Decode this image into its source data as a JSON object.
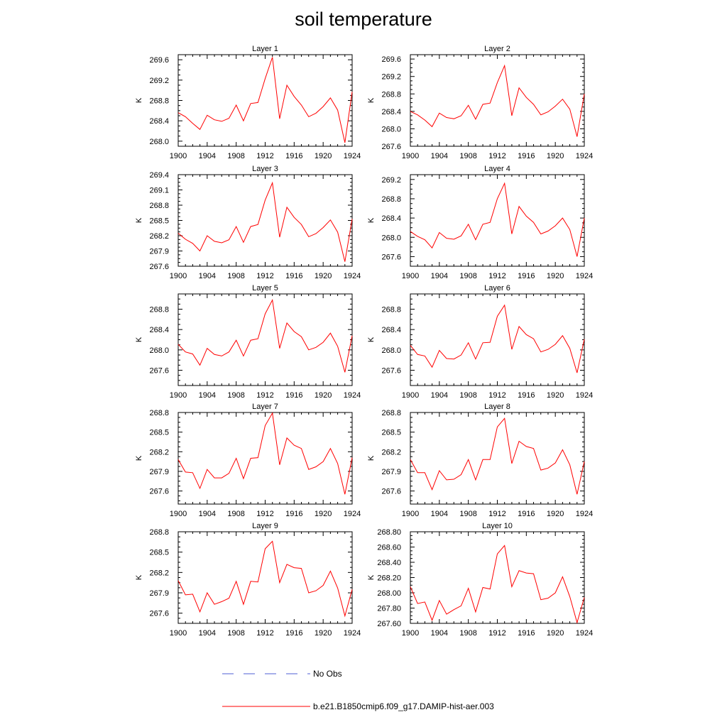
{
  "figure": {
    "title": "soil temperature"
  },
  "legend": {
    "entries": [
      {
        "label": "No Obs",
        "color": "#4f5fd6",
        "style": "dashed"
      },
      {
        "label": "b.e21.B1850cmip6.f09_g17.DAMIP-hist-aer.003",
        "color": "#ff0000",
        "style": "solid"
      }
    ]
  },
  "chart_data": [
    {
      "type": "line",
      "title": "Layer 1",
      "ylabel": "K",
      "xlim": [
        1900,
        1924
      ],
      "ylim": [
        267.9,
        269.7
      ],
      "x_ticks": [
        "1900",
        "1904",
        "1908",
        "1912",
        "1916",
        "1920",
        "1924"
      ],
      "y_ticks": [
        "268.0",
        "268.4",
        "268.8",
        "269.2",
        "269.6"
      ],
      "x": [
        1900,
        1901,
        1902,
        1903,
        1904,
        1905,
        1906,
        1907,
        1908,
        1909,
        1910,
        1911,
        1912,
        1913,
        1914,
        1915,
        1916,
        1917,
        1918,
        1919,
        1920,
        1921,
        1922,
        1923,
        1924
      ],
      "series": [
        {
          "name": "b.e21.B1850cmip6.f09_g17.DAMIP-hist-aer.003",
          "color": "#ff0000",
          "values": [
            268.56,
            268.48,
            268.35,
            268.23,
            268.51,
            268.42,
            268.39,
            268.45,
            268.71,
            268.4,
            268.74,
            268.76,
            269.23,
            269.65,
            268.44,
            269.1,
            268.88,
            268.71,
            268.48,
            268.55,
            268.68,
            268.85,
            268.61,
            267.97,
            268.97
          ]
        }
      ]
    },
    {
      "type": "line",
      "title": "Layer 2",
      "ylabel": "K",
      "xlim": [
        1900,
        1924
      ],
      "ylim": [
        267.6,
        269.7
      ],
      "x_ticks": [
        "1900",
        "1904",
        "1908",
        "1912",
        "1916",
        "1920",
        "1924"
      ],
      "y_ticks": [
        "267.6",
        "268.0",
        "268.4",
        "268.8",
        "269.2",
        "269.6"
      ],
      "x": [
        1900,
        1901,
        1902,
        1903,
        1904,
        1905,
        1906,
        1907,
        1908,
        1909,
        1910,
        1911,
        1912,
        1913,
        1914,
        1915,
        1916,
        1917,
        1918,
        1919,
        1920,
        1921,
        1922,
        1923,
        1924
      ],
      "series": [
        {
          "name": "b.e21.B1850cmip6.f09_g17.DAMIP-hist-aer.003",
          "color": "#ff0000",
          "values": [
            268.4,
            268.32,
            268.2,
            268.05,
            268.36,
            268.26,
            268.23,
            268.3,
            268.54,
            268.22,
            268.56,
            268.59,
            269.06,
            269.45,
            268.3,
            268.94,
            268.72,
            268.56,
            268.32,
            268.39,
            268.52,
            268.68,
            268.45,
            267.82,
            268.8
          ]
        }
      ]
    },
    {
      "type": "line",
      "title": "Layer 3",
      "ylabel": "K",
      "xlim": [
        1900,
        1924
      ],
      "ylim": [
        267.6,
        269.4
      ],
      "x_ticks": [
        "1900",
        "1904",
        "1908",
        "1912",
        "1916",
        "1920",
        "1924"
      ],
      "y_ticks": [
        "267.6",
        "267.9",
        "268.2",
        "268.5",
        "268.8",
        "269.1",
        "269.4"
      ],
      "x": [
        1900,
        1901,
        1902,
        1903,
        1904,
        1905,
        1906,
        1907,
        1908,
        1909,
        1910,
        1911,
        1912,
        1913,
        1914,
        1915,
        1916,
        1917,
        1918,
        1919,
        1920,
        1921,
        1922,
        1923,
        1924
      ],
      "series": [
        {
          "name": "b.e21.B1850cmip6.f09_g17.DAMIP-hist-aer.003",
          "color": "#ff0000",
          "values": [
            268.25,
            268.13,
            268.05,
            267.9,
            268.2,
            268.09,
            268.06,
            268.12,
            268.38,
            268.07,
            268.38,
            268.42,
            268.9,
            269.24,
            268.17,
            268.76,
            268.56,
            268.42,
            268.18,
            268.24,
            268.36,
            268.51,
            268.27,
            267.69,
            268.53
          ]
        }
      ]
    },
    {
      "type": "line",
      "title": "Layer 4",
      "ylabel": "K",
      "xlim": [
        1900,
        1924
      ],
      "ylim": [
        267.4,
        269.3
      ],
      "x_ticks": [
        "1900",
        "1904",
        "1908",
        "1912",
        "1916",
        "1920",
        "1924"
      ],
      "y_ticks": [
        "267.6",
        "268.0",
        "268.4",
        "268.8",
        "269.2"
      ],
      "x": [
        1900,
        1901,
        1902,
        1903,
        1904,
        1905,
        1906,
        1907,
        1908,
        1909,
        1910,
        1911,
        1912,
        1913,
        1914,
        1915,
        1916,
        1917,
        1918,
        1919,
        1920,
        1921,
        1922,
        1923,
        1924
      ],
      "series": [
        {
          "name": "b.e21.B1850cmip6.f09_g17.DAMIP-hist-aer.003",
          "color": "#ff0000",
          "values": [
            268.12,
            268.02,
            267.95,
            267.78,
            268.1,
            267.98,
            267.96,
            268.03,
            268.27,
            267.95,
            268.27,
            268.31,
            268.8,
            269.12,
            268.07,
            268.64,
            268.44,
            268.31,
            268.07,
            268.13,
            268.24,
            268.4,
            268.16,
            267.6,
            268.4
          ]
        }
      ]
    },
    {
      "type": "line",
      "title": "Layer 5",
      "ylabel": "K",
      "xlim": [
        1900,
        1924
      ],
      "ylim": [
        267.3,
        269.1
      ],
      "x_ticks": [
        "1900",
        "1904",
        "1908",
        "1912",
        "1916",
        "1920",
        "1924"
      ],
      "y_ticks": [
        "267.6",
        "268.0",
        "268.4",
        "268.8"
      ],
      "x": [
        1900,
        1901,
        1902,
        1903,
        1904,
        1905,
        1906,
        1907,
        1908,
        1909,
        1910,
        1911,
        1912,
        1913,
        1914,
        1915,
        1916,
        1917,
        1918,
        1919,
        1920,
        1921,
        1922,
        1923,
        1924
      ],
      "series": [
        {
          "name": "b.e21.B1850cmip6.f09_g17.DAMIP-hist-aer.003",
          "color": "#ff0000",
          "values": [
            268.11,
            267.96,
            267.92,
            267.7,
            268.03,
            267.91,
            267.88,
            267.96,
            268.19,
            267.88,
            268.19,
            268.22,
            268.71,
            268.98,
            268.03,
            268.53,
            268.36,
            268.26,
            268.0,
            268.05,
            268.15,
            268.33,
            268.07,
            267.56,
            268.28
          ]
        }
      ]
    },
    {
      "type": "line",
      "title": "Layer 6",
      "ylabel": "K",
      "xlim": [
        1900,
        1924
      ],
      "ylim": [
        267.3,
        269.1
      ],
      "x_ticks": [
        "1900",
        "1904",
        "1908",
        "1912",
        "1916",
        "1920",
        "1924"
      ],
      "y_ticks": [
        "267.6",
        "268.0",
        "268.4",
        "268.8"
      ],
      "x": [
        1900,
        1901,
        1902,
        1903,
        1904,
        1905,
        1906,
        1907,
        1908,
        1909,
        1910,
        1911,
        1912,
        1913,
        1914,
        1915,
        1916,
        1917,
        1918,
        1919,
        1920,
        1921,
        1922,
        1923,
        1924
      ],
      "series": [
        {
          "name": "b.e21.B1850cmip6.f09_g17.DAMIP-hist-aer.003",
          "color": "#ff0000",
          "values": [
            268.09,
            267.91,
            267.88,
            267.66,
            267.99,
            267.83,
            267.82,
            267.9,
            268.14,
            267.82,
            268.14,
            268.15,
            268.66,
            268.88,
            268.01,
            268.46,
            268.3,
            268.22,
            267.96,
            268.01,
            268.11,
            268.28,
            268.03,
            267.55,
            268.21
          ]
        }
      ]
    },
    {
      "type": "line",
      "title": "Layer 7",
      "ylabel": "K",
      "xlim": [
        1900,
        1924
      ],
      "ylim": [
        267.4,
        268.8
      ],
      "x_ticks": [
        "1900",
        "1904",
        "1908",
        "1912",
        "1916",
        "1920",
        "1924"
      ],
      "y_ticks": [
        "267.6",
        "267.9",
        "268.2",
        "268.5",
        "268.8"
      ],
      "x": [
        1900,
        1901,
        1902,
        1903,
        1904,
        1905,
        1906,
        1907,
        1908,
        1909,
        1910,
        1911,
        1912,
        1913,
        1914,
        1915,
        1916,
        1917,
        1918,
        1919,
        1920,
        1921,
        1922,
        1923,
        1924
      ],
      "series": [
        {
          "name": "b.e21.B1850cmip6.f09_g17.DAMIP-hist-aer.003",
          "color": "#ff0000",
          "values": [
            268.08,
            267.89,
            267.88,
            267.64,
            267.93,
            267.8,
            267.8,
            267.87,
            268.1,
            267.79,
            268.1,
            268.11,
            268.6,
            268.79,
            268.0,
            268.41,
            268.3,
            268.25,
            267.93,
            267.97,
            268.05,
            268.25,
            268.02,
            267.55,
            268.11
          ]
        }
      ]
    },
    {
      "type": "line",
      "title": "Layer 8",
      "ylabel": "K",
      "xlim": [
        1900,
        1924
      ],
      "ylim": [
        267.4,
        268.8
      ],
      "x_ticks": [
        "1900",
        "1904",
        "1908",
        "1912",
        "1916",
        "1920",
        "1924"
      ],
      "y_ticks": [
        "267.6",
        "267.9",
        "268.2",
        "268.5",
        "268.8"
      ],
      "x": [
        1900,
        1901,
        1902,
        1903,
        1904,
        1905,
        1906,
        1907,
        1908,
        1909,
        1910,
        1911,
        1912,
        1913,
        1914,
        1915,
        1916,
        1917,
        1918,
        1919,
        1920,
        1921,
        1922,
        1923,
        1924
      ],
      "series": [
        {
          "name": "b.e21.B1850cmip6.f09_g17.DAMIP-hist-aer.003",
          "color": "#ff0000",
          "values": [
            268.08,
            267.88,
            267.88,
            267.62,
            267.91,
            267.77,
            267.78,
            267.85,
            268.08,
            267.77,
            268.08,
            268.08,
            268.58,
            268.71,
            268.02,
            268.36,
            268.28,
            268.25,
            267.92,
            267.95,
            268.03,
            268.23,
            268.0,
            267.55,
            268.05
          ]
        }
      ]
    },
    {
      "type": "line",
      "title": "Layer 9",
      "ylabel": "K",
      "xlim": [
        1900,
        1924
      ],
      "ylim": [
        267.45,
        268.8
      ],
      "x_ticks": [
        "1900",
        "1904",
        "1908",
        "1912",
        "1916",
        "1920",
        "1924"
      ],
      "y_ticks": [
        "267.6",
        "267.9",
        "268.2",
        "268.5",
        "268.8"
      ],
      "x": [
        1900,
        1901,
        1902,
        1903,
        1904,
        1905,
        1906,
        1907,
        1908,
        1909,
        1910,
        1911,
        1912,
        1913,
        1914,
        1915,
        1916,
        1917,
        1918,
        1919,
        1920,
        1921,
        1922,
        1923,
        1924
      ],
      "series": [
        {
          "name": "b.e21.B1850cmip6.f09_g17.DAMIP-hist-aer.003",
          "color": "#ff0000",
          "values": [
            268.08,
            267.87,
            267.88,
            267.62,
            267.9,
            267.73,
            267.77,
            267.82,
            268.07,
            267.73,
            268.07,
            268.06,
            268.55,
            268.66,
            268.05,
            268.32,
            268.27,
            268.26,
            267.9,
            267.93,
            268.01,
            268.22,
            267.97,
            267.56,
            267.95
          ]
        }
      ]
    },
    {
      "type": "line",
      "title": "Layer 10",
      "ylabel": "K",
      "xlim": [
        1900,
        1924
      ],
      "ylim": [
        267.6,
        268.8
      ],
      "x_ticks": [
        "1900",
        "1904",
        "1908",
        "1912",
        "1916",
        "1920",
        "1924"
      ],
      "y_ticks": [
        "267.60",
        "267.80",
        "268.00",
        "268.20",
        "268.40",
        "268.60",
        "268.80"
      ],
      "x": [
        1900,
        1901,
        1902,
        1903,
        1904,
        1905,
        1906,
        1907,
        1908,
        1909,
        1910,
        1911,
        1912,
        1913,
        1914,
        1915,
        1916,
        1917,
        1918,
        1919,
        1920,
        1921,
        1922,
        1923,
        1924
      ],
      "series": [
        {
          "name": "b.e21.B1850cmip6.f09_g17.DAMIP-hist-aer.003",
          "color": "#ff0000",
          "values": [
            268.08,
            267.86,
            267.88,
            267.64,
            267.9,
            267.72,
            267.78,
            267.83,
            268.06,
            267.75,
            268.07,
            268.05,
            268.51,
            268.62,
            268.08,
            268.29,
            268.26,
            268.25,
            267.91,
            267.93,
            268.0,
            268.21,
            267.95,
            267.61,
            267.94
          ]
        }
      ]
    }
  ]
}
